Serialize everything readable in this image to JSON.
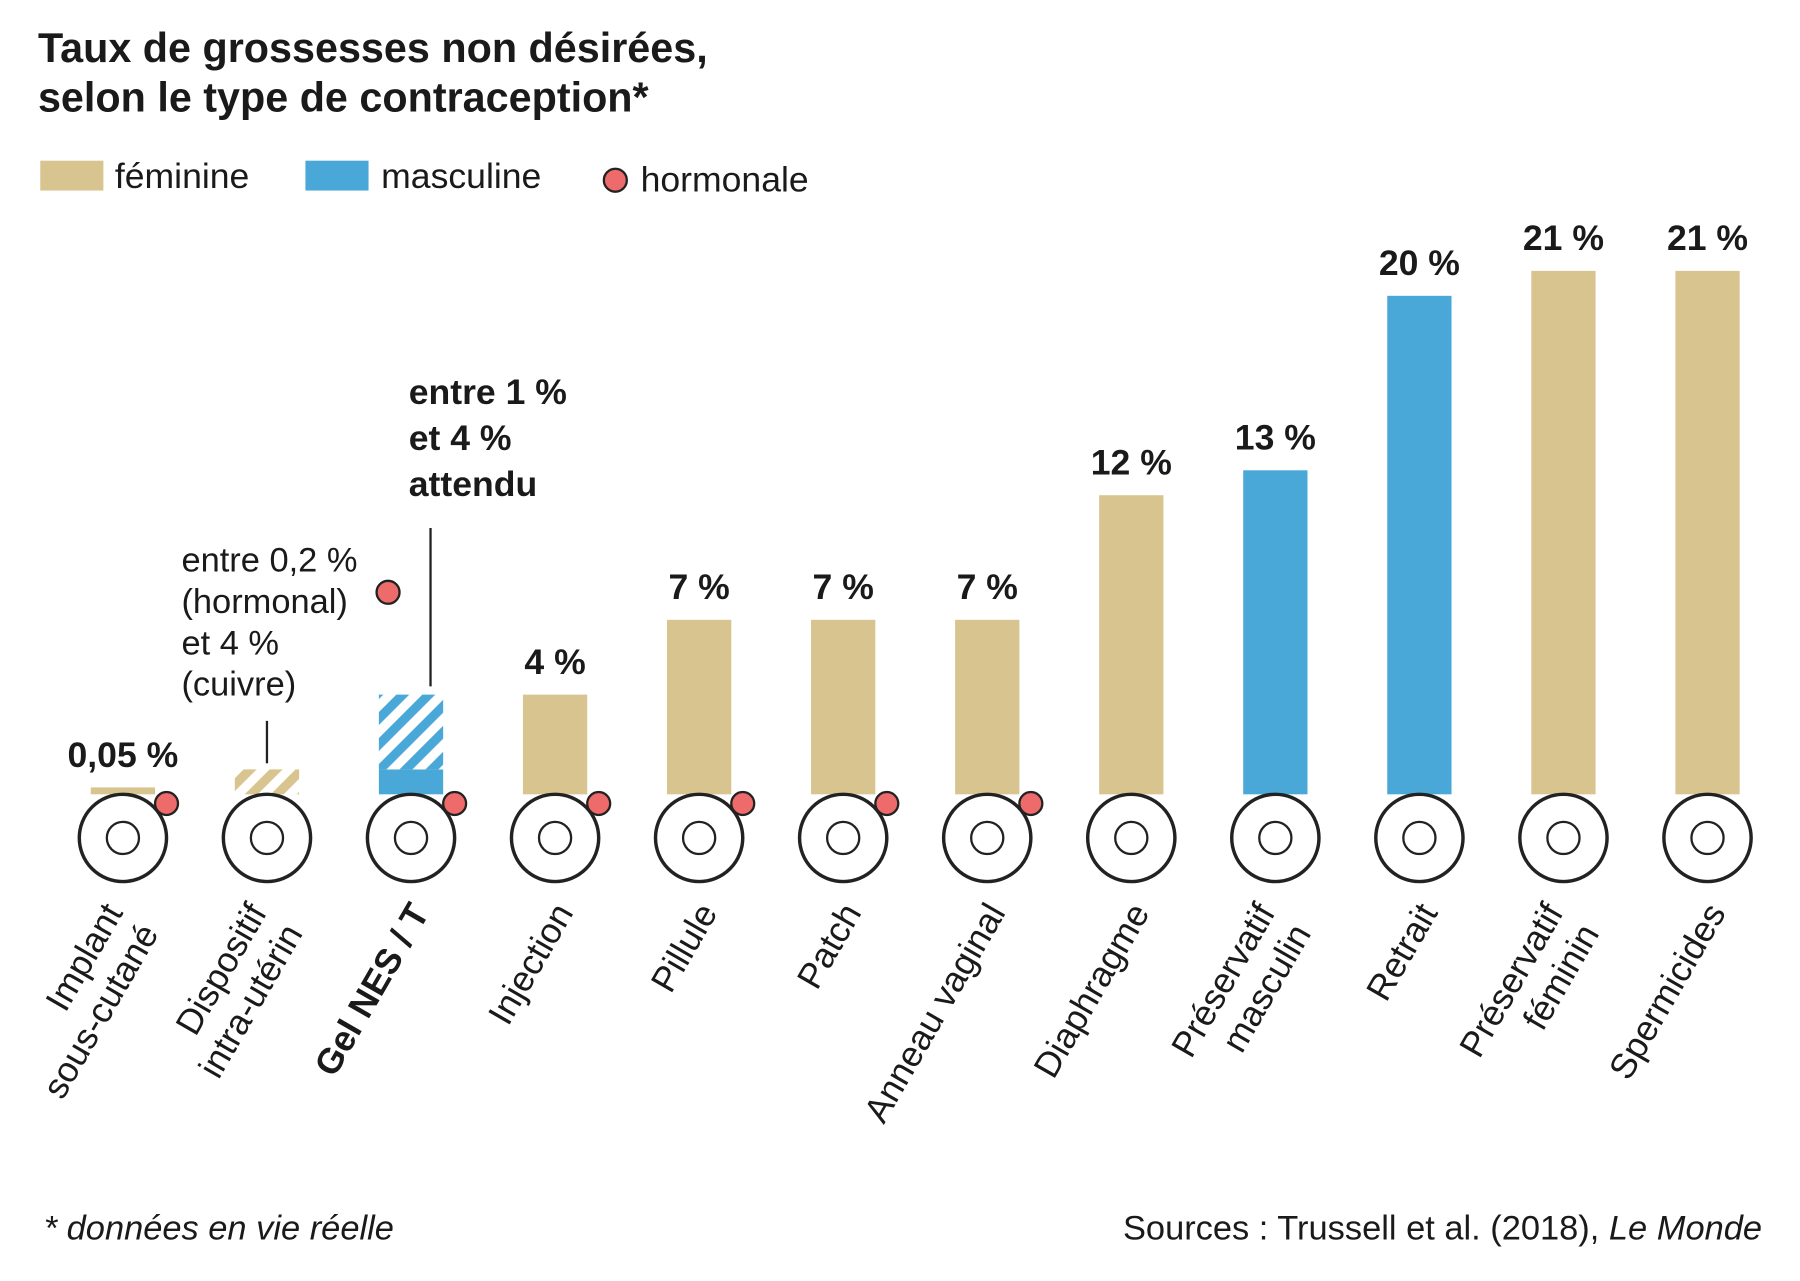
{
  "chart_data": {
    "type": "bar",
    "title": [
      "Taux de grossesses non désirées,",
      "selon le type de contraception*"
    ],
    "series": [
      {
        "name": "féminine",
        "color": "#d8c48f"
      },
      {
        "name": "masculine",
        "color": "#4aa8d8"
      }
    ],
    "hormonal_legend": {
      "name": "hormonale",
      "color": "#ee6b6b"
    },
    "categories": [
      [
        "Implant",
        "sous-cutané"
      ],
      [
        "Dispositif",
        "intra-utérin"
      ],
      [
        "Gel NES / T"
      ],
      [
        "Injection"
      ],
      [
        "Pillule"
      ],
      [
        "Patch"
      ],
      [
        "Anneau vaginal"
      ],
      [
        "Diaphragme"
      ],
      [
        "Préservatif",
        "masculin"
      ],
      [
        "Retrait"
      ],
      [
        "Préservatif",
        "féminin"
      ],
      [
        "Spermicides"
      ]
    ],
    "kind": [
      0,
      0,
      1,
      0,
      0,
      0,
      0,
      0,
      1,
      1,
      0,
      0
    ],
    "values": [
      0.05,
      null,
      1,
      4,
      7,
      7,
      7,
      12,
      13,
      20,
      21,
      21
    ],
    "hatched": [
      null,
      1,
      4,
      null,
      null,
      null,
      null,
      null,
      null,
      null,
      null,
      null
    ],
    "value_labels": [
      "0,05 %",
      null,
      null,
      "4 %",
      "7 %",
      "7 %",
      "7 %",
      "12 %",
      "13 %",
      "20 %",
      "21 %",
      "21 %"
    ],
    "hormonal": [
      true,
      false,
      true,
      true,
      true,
      true,
      true,
      false,
      false,
      false,
      false,
      false
    ],
    "highlight_index": 2,
    "ylim": [
      0,
      21
    ],
    "annotations": [
      {
        "index": 1,
        "lines": [
          "entre 0,2 %",
          "(hormonal)",
          "et 4 %",
          "(cuivre)"
        ],
        "bold": false
      },
      {
        "index": 2,
        "lines": [
          "entre 1 %",
          "et 4 %",
          "attendu"
        ],
        "bold": true
      }
    ],
    "footnote": "* données en vie réelle",
    "source": "Sources : Trussell et al. (2018), ",
    "source_outlet": "Le Monde"
  }
}
